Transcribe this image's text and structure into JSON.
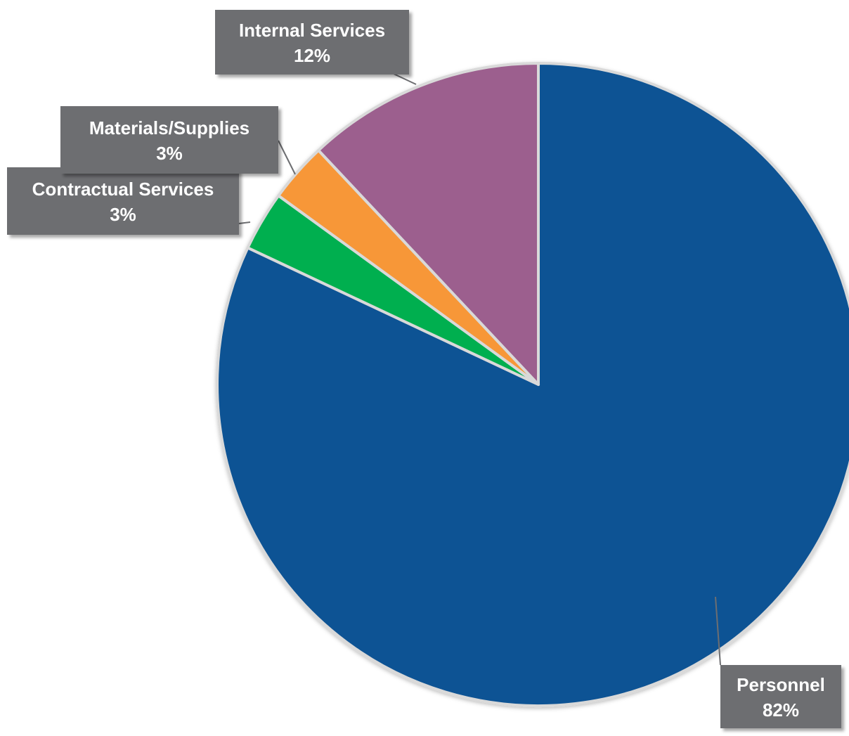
{
  "chart_data": {
    "type": "pie",
    "title": "",
    "slices": [
      {
        "label": "Personnel",
        "value": 82,
        "percent_label": "82%",
        "color": "#0E5394"
      },
      {
        "label": "Contractual Services",
        "value": 3,
        "percent_label": "3%",
        "color": "#00AF50"
      },
      {
        "label": "Materials/Supplies",
        "value": 3,
        "percent_label": "3%",
        "color": "#F79737"
      },
      {
        "label": "Internal Services",
        "value": 12,
        "percent_label": "12%",
        "color": "#9C5E8E"
      }
    ],
    "start_angle": "12 o'clock",
    "direction": "clockwise",
    "slice_border_color": "#D9D9D9",
    "label_box_color": "#6D6E71",
    "label_text_color": "#FFFFFF",
    "legend": "none"
  }
}
